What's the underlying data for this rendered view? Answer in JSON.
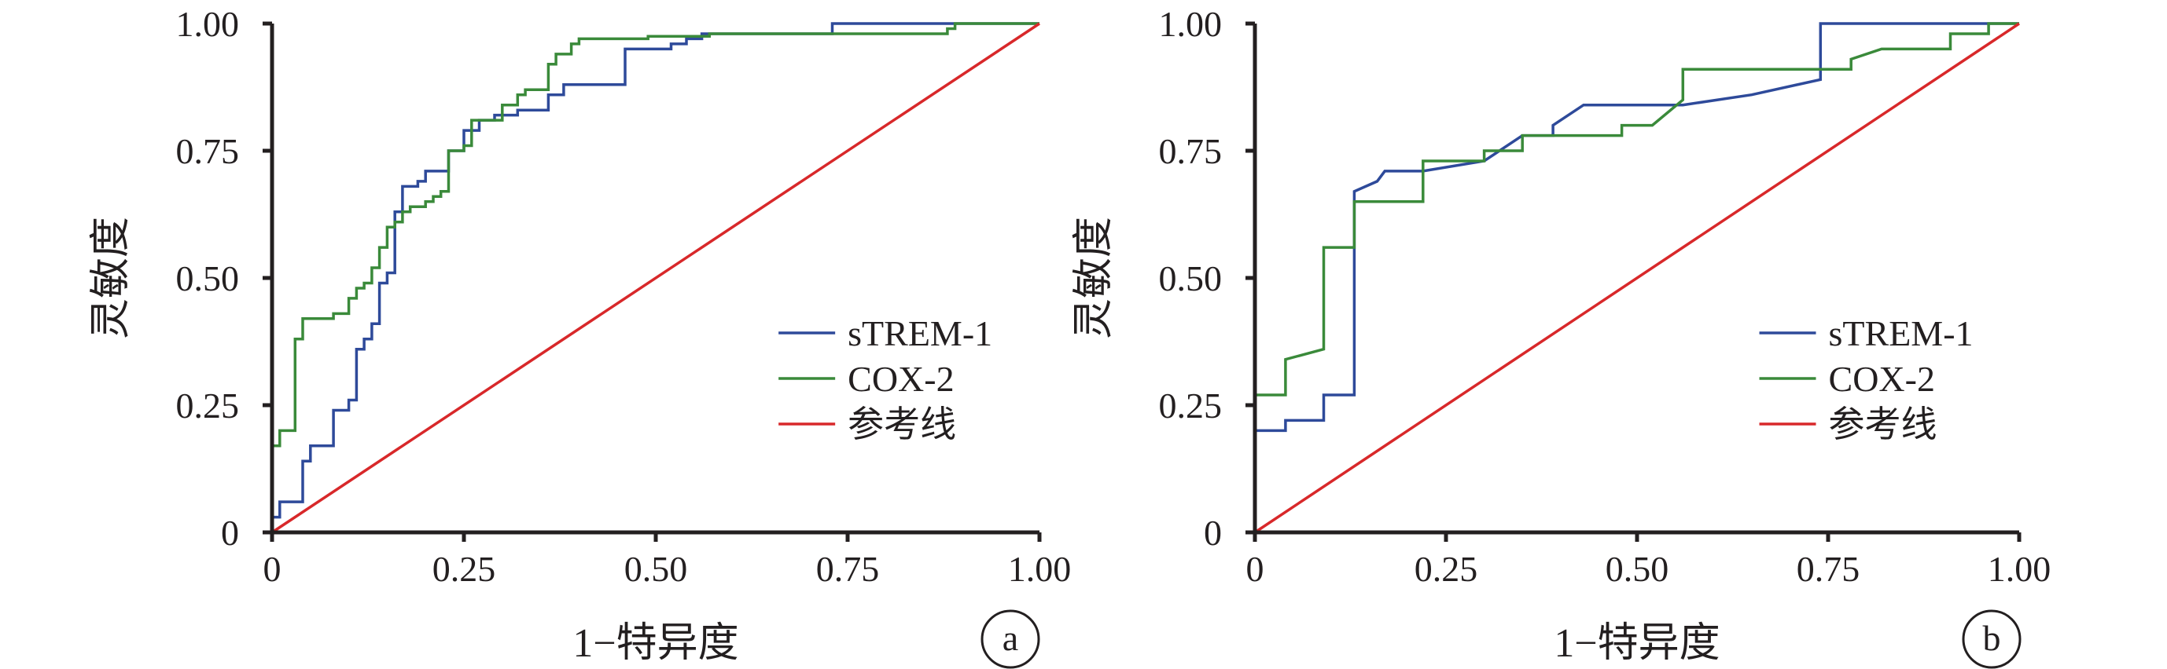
{
  "chart_data": [
    {
      "type": "line",
      "panel": "a",
      "xlabel": "1−特异度",
      "ylabel": "灵敏度",
      "xlim": [
        0,
        1
      ],
      "ylim": [
        0,
        1
      ],
      "x_ticks": [
        "0",
        "0.25",
        "0.50",
        "0.75",
        "1.00"
      ],
      "y_ticks": [
        "0",
        "0.25",
        "0.50",
        "0.75",
        "1.00"
      ],
      "grid": false,
      "legend_position": "lower-right",
      "series": [
        {
          "name": "sTREM-1",
          "color": "#2e4a9a",
          "step": true,
          "points": [
            [
              0,
              0
            ],
            [
              0,
              0.03
            ],
            [
              0.01,
              0.03
            ],
            [
              0.01,
              0.06
            ],
            [
              0.04,
              0.06
            ],
            [
              0.04,
              0.14
            ],
            [
              0.05,
              0.14
            ],
            [
              0.05,
              0.17
            ],
            [
              0.08,
              0.17
            ],
            [
              0.08,
              0.24
            ],
            [
              0.1,
              0.24
            ],
            [
              0.1,
              0.26
            ],
            [
              0.11,
              0.26
            ],
            [
              0.11,
              0.36
            ],
            [
              0.12,
              0.36
            ],
            [
              0.12,
              0.38
            ],
            [
              0.13,
              0.38
            ],
            [
              0.13,
              0.41
            ],
            [
              0.14,
              0.41
            ],
            [
              0.14,
              0.49
            ],
            [
              0.15,
              0.49
            ],
            [
              0.15,
              0.51
            ],
            [
              0.16,
              0.51
            ],
            [
              0.16,
              0.63
            ],
            [
              0.17,
              0.63
            ],
            [
              0.17,
              0.68
            ],
            [
              0.19,
              0.68
            ],
            [
              0.19,
              0.69
            ],
            [
              0.2,
              0.69
            ],
            [
              0.2,
              0.71
            ],
            [
              0.23,
              0.71
            ],
            [
              0.23,
              0.75
            ],
            [
              0.25,
              0.75
            ],
            [
              0.25,
              0.79
            ],
            [
              0.27,
              0.79
            ],
            [
              0.27,
              0.81
            ],
            [
              0.29,
              0.81
            ],
            [
              0.29,
              0.82
            ],
            [
              0.32,
              0.82
            ],
            [
              0.32,
              0.83
            ],
            [
              0.36,
              0.83
            ],
            [
              0.36,
              0.86
            ],
            [
              0.38,
              0.86
            ],
            [
              0.38,
              0.88
            ],
            [
              0.46,
              0.88
            ],
            [
              0.46,
              0.95
            ],
            [
              0.52,
              0.95
            ],
            [
              0.52,
              0.96
            ],
            [
              0.54,
              0.96
            ],
            [
              0.54,
              0.97
            ],
            [
              0.56,
              0.97
            ],
            [
              0.56,
              0.98
            ],
            [
              0.73,
              0.98
            ],
            [
              0.73,
              1.0
            ],
            [
              1.0,
              1.0
            ]
          ]
        },
        {
          "name": "COX-2",
          "color": "#3a8a3a",
          "step": true,
          "points": [
            [
              0,
              0
            ],
            [
              0,
              0.17
            ],
            [
              0.01,
              0.17
            ],
            [
              0.01,
              0.2
            ],
            [
              0.03,
              0.2
            ],
            [
              0.03,
              0.21
            ],
            [
              0.03,
              0.38
            ],
            [
              0.04,
              0.38
            ],
            [
              0.04,
              0.42
            ],
            [
              0.08,
              0.42
            ],
            [
              0.08,
              0.43
            ],
            [
              0.1,
              0.43
            ],
            [
              0.1,
              0.46
            ],
            [
              0.11,
              0.46
            ],
            [
              0.11,
              0.48
            ],
            [
              0.12,
              0.48
            ],
            [
              0.12,
              0.49
            ],
            [
              0.13,
              0.49
            ],
            [
              0.13,
              0.52
            ],
            [
              0.14,
              0.52
            ],
            [
              0.14,
              0.56
            ],
            [
              0.15,
              0.56
            ],
            [
              0.15,
              0.6
            ],
            [
              0.16,
              0.6
            ],
            [
              0.16,
              0.61
            ],
            [
              0.17,
              0.61
            ],
            [
              0.17,
              0.63
            ],
            [
              0.18,
              0.63
            ],
            [
              0.18,
              0.64
            ],
            [
              0.2,
              0.64
            ],
            [
              0.2,
              0.65
            ],
            [
              0.21,
              0.65
            ],
            [
              0.21,
              0.66
            ],
            [
              0.22,
              0.66
            ],
            [
              0.22,
              0.67
            ],
            [
              0.23,
              0.67
            ],
            [
              0.23,
              0.75
            ],
            [
              0.25,
              0.75
            ],
            [
              0.25,
              0.76
            ],
            [
              0.26,
              0.76
            ],
            [
              0.26,
              0.81
            ],
            [
              0.3,
              0.81
            ],
            [
              0.3,
              0.84
            ],
            [
              0.32,
              0.84
            ],
            [
              0.32,
              0.86
            ],
            [
              0.33,
              0.86
            ],
            [
              0.33,
              0.87
            ],
            [
              0.36,
              0.87
            ],
            [
              0.36,
              0.92
            ],
            [
              0.37,
              0.92
            ],
            [
              0.37,
              0.94
            ],
            [
              0.39,
              0.94
            ],
            [
              0.39,
              0.96
            ],
            [
              0.4,
              0.96
            ],
            [
              0.4,
              0.97
            ],
            [
              0.49,
              0.97
            ],
            [
              0.49,
              0.975
            ],
            [
              0.57,
              0.975
            ],
            [
              0.57,
              0.98
            ],
            [
              0.88,
              0.98
            ],
            [
              0.88,
              0.99
            ],
            [
              0.89,
              0.99
            ],
            [
              0.89,
              1.0
            ],
            [
              1.0,
              1.0
            ]
          ]
        },
        {
          "name": "参考线",
          "color": "#d8282a",
          "step": false,
          "points": [
            [
              0,
              0
            ],
            [
              1,
              1
            ]
          ]
        }
      ]
    },
    {
      "type": "line",
      "panel": "b",
      "xlabel": "1−特异度",
      "ylabel": "灵敏度",
      "xlim": [
        0,
        1
      ],
      "ylim": [
        0,
        1
      ],
      "x_ticks": [
        "0",
        "0.25",
        "0.50",
        "0.75",
        "1.00"
      ],
      "y_ticks": [
        "0",
        "0.25",
        "0.50",
        "0.75",
        "1.00"
      ],
      "grid": false,
      "legend_position": "lower-right",
      "series": [
        {
          "name": "sTREM-1",
          "color": "#2e4a9a",
          "step": true,
          "points": [
            [
              0,
              0.2
            ],
            [
              0.04,
              0.2
            ],
            [
              0.04,
              0.22
            ],
            [
              0.09,
              0.22
            ],
            [
              0.09,
              0.27
            ],
            [
              0.13,
              0.27
            ],
            [
              0.13,
              0.67
            ],
            [
              0.16,
              0.69
            ],
            [
              0.17,
              0.71
            ],
            [
              0.22,
              0.71
            ],
            [
              0.3,
              0.73
            ],
            [
              0.35,
              0.78
            ],
            [
              0.39,
              0.78
            ],
            [
              0.39,
              0.8
            ],
            [
              0.43,
              0.84
            ],
            [
              0.56,
              0.84
            ],
            [
              0.65,
              0.86
            ],
            [
              0.74,
              0.89
            ],
            [
              0.74,
              1.0
            ],
            [
              1.0,
              1.0
            ]
          ]
        },
        {
          "name": "COX-2",
          "color": "#3a8a3a",
          "step": true,
          "points": [
            [
              0,
              0.27
            ],
            [
              0.04,
              0.27
            ],
            [
              0.04,
              0.34
            ],
            [
              0.09,
              0.36
            ],
            [
              0.09,
              0.56
            ],
            [
              0.13,
              0.56
            ],
            [
              0.13,
              0.65
            ],
            [
              0.22,
              0.65
            ],
            [
              0.22,
              0.73
            ],
            [
              0.3,
              0.73
            ],
            [
              0.3,
              0.75
            ],
            [
              0.35,
              0.75
            ],
            [
              0.35,
              0.78
            ],
            [
              0.48,
              0.78
            ],
            [
              0.48,
              0.8
            ],
            [
              0.52,
              0.8
            ],
            [
              0.56,
              0.85
            ],
            [
              0.56,
              0.91
            ],
            [
              0.73,
              0.91
            ],
            [
              0.78,
              0.91
            ],
            [
              0.78,
              0.93
            ],
            [
              0.82,
              0.95
            ],
            [
              0.91,
              0.95
            ],
            [
              0.91,
              0.98
            ],
            [
              0.96,
              0.98
            ],
            [
              0.96,
              1.0
            ],
            [
              1.0,
              1.0
            ]
          ]
        },
        {
          "name": "参考线",
          "color": "#d8282a",
          "step": false,
          "points": [
            [
              0,
              0
            ],
            [
              1,
              1
            ]
          ]
        }
      ]
    }
  ]
}
